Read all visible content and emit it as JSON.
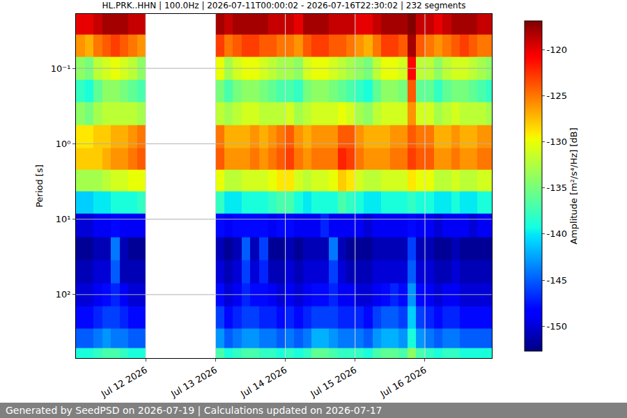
{
  "chart_data": {
    "type": "heatmap",
    "title": "HL.PRK..HHN | 100.0Hz | 2026-07-11T00:00:02 - 2026-07-16T22:30:02 | 232 segments",
    "ylabel": "Period [s]",
    "footer": "Generated by SeedPSD on 2026-07-19 | Calculations updated on 2026-07-17",
    "color": "jet",
    "log": "y",
    "grid": true,
    "xlim": [
      "2026-07-11 00:00",
      "2026-07-16 23:00"
    ],
    "xticks": [
      {
        "value": "2026-07-12",
        "label": "Jul 12 2026"
      },
      {
        "value": "2026-07-13",
        "label": "Jul 13 2026"
      },
      {
        "value": "2026-07-14",
        "label": "Jul 14 2026"
      },
      {
        "value": "2026-07-15",
        "label": "Jul 15 2026"
      },
      {
        "value": "2026-07-16",
        "label": "Jul 16 2026"
      }
    ],
    "ylim": [
      695,
      0.019
    ],
    "yticks": [
      {
        "value": 0.1,
        "label": "10⁻¹"
      },
      {
        "value": 1,
        "label": "10⁰"
      },
      {
        "value": 10,
        "label": "10¹"
      },
      {
        "value": 100,
        "label": "10²"
      }
    ],
    "colorbar": {
      "title": "Amplitude [m²/s⁴/Hz] [dB]",
      "zlim": [
        -152.7,
        -116.9
      ],
      "ticks": [
        -150,
        -145,
        -140,
        -135,
        -130,
        -125,
        -120
      ]
    },
    "x": [
      "2026-07-11 01:30",
      "2026-07-11 04:30",
      "2026-07-11 07:30",
      "2026-07-11 10:30",
      "2026-07-11 13:30",
      "2026-07-11 16:30",
      "2026-07-11 19:30",
      "2026-07-11 22:30",
      "2026-07-12 01:30",
      "2026-07-12 04:30",
      "2026-07-12 07:30",
      "2026-07-12 10:30",
      "2026-07-12 13:30",
      "2026-07-12 16:30",
      "2026-07-12 19:30",
      "2026-07-12 22:30",
      "2026-07-13 01:30",
      "2026-07-13 04:30",
      "2026-07-13 07:30",
      "2026-07-13 10:30",
      "2026-07-13 13:30",
      "2026-07-13 16:30",
      "2026-07-13 19:30",
      "2026-07-13 22:30",
      "2026-07-14 01:30",
      "2026-07-14 04:30",
      "2026-07-14 07:30",
      "2026-07-14 10:30",
      "2026-07-14 13:30",
      "2026-07-14 16:30",
      "2026-07-14 19:30",
      "2026-07-14 22:30",
      "2026-07-15 01:30",
      "2026-07-15 04:30",
      "2026-07-15 07:30",
      "2026-07-15 10:30",
      "2026-07-15 13:30",
      "2026-07-15 16:30",
      "2026-07-15 19:30",
      "2026-07-15 22:30",
      "2026-07-16 01:30",
      "2026-07-16 04:30",
      "2026-07-16 07:30",
      "2026-07-16 10:30",
      "2026-07-16 13:30",
      "2026-07-16 16:30",
      "2026-07-16 19:30",
      "2026-07-16 22:30"
    ],
    "y": [
      0.025,
      0.05,
      0.1,
      0.2,
      0.4,
      0.8,
      1.6,
      3,
      6,
      12,
      25,
      50,
      100,
      200,
      400,
      650
    ],
    "z": [
      [
        -120,
        -120,
        -119,
        -118,
        -118,
        -118,
        -119,
        -119,
        null,
        null,
        null,
        null,
        null,
        null,
        null,
        null,
        -118,
        -119,
        -118,
        -118,
        -118,
        -118,
        -119,
        -119,
        -119,
        -120,
        -118,
        -118,
        -118,
        -119,
        -119,
        -119,
        -120,
        -120,
        -119,
        -118,
        -118,
        -118,
        -117,
        -119,
        -119,
        -120,
        -119,
        -118,
        -118,
        -118,
        -119,
        -119
      ],
      [
        -126,
        -127,
        -125,
        -124,
        -123,
        -124,
        -125,
        -126,
        null,
        null,
        null,
        null,
        null,
        null,
        null,
        null,
        -123,
        -125,
        -124,
        -123,
        -123,
        -124,
        -124,
        -125,
        -125,
        -126,
        -124,
        -123,
        -123,
        -124,
        -124,
        -125,
        -126,
        -127,
        -125,
        -123,
        -123,
        -124,
        -118,
        -124,
        -125,
        -126,
        -125,
        -124,
        -123,
        -124,
        -125,
        -125
      ],
      [
        -134,
        -135,
        -132,
        -131,
        -130,
        -131,
        -132,
        -134,
        null,
        null,
        null,
        null,
        null,
        null,
        null,
        null,
        -130,
        -133,
        -131,
        -130,
        -130,
        -131,
        -132,
        -133,
        -133,
        -134,
        -131,
        -130,
        -130,
        -131,
        -132,
        -133,
        -134,
        -135,
        -132,
        -130,
        -130,
        -131,
        -121,
        -132,
        -132,
        -134,
        -132,
        -131,
        -131,
        -132,
        -133,
        -134
      ],
      [
        -138,
        -139,
        -136,
        -134,
        -134,
        -135,
        -136,
        -137,
        null,
        null,
        null,
        null,
        null,
        null,
        null,
        null,
        -135,
        -137,
        -135,
        -134,
        -134,
        -135,
        -136,
        -137,
        -137,
        -138,
        -135,
        -134,
        -134,
        -135,
        -136,
        -137,
        -138,
        -139,
        -136,
        -134,
        -134,
        -135,
        -124,
        -136,
        -136,
        -138,
        -136,
        -135,
        -135,
        -136,
        -137,
        -138
      ],
      [
        -134,
        -135,
        -133,
        -132,
        -132,
        -132,
        -132,
        -133,
        null,
        null,
        null,
        null,
        null,
        null,
        null,
        null,
        -132,
        -133,
        -132,
        -131,
        -131,
        -132,
        -132,
        -132,
        -131,
        -133,
        -132,
        -131,
        -131,
        -131,
        -130,
        -131,
        -133,
        -134,
        -132,
        -131,
        -131,
        -131,
        -126,
        -131,
        -131,
        -133,
        -132,
        -131,
        -132,
        -132,
        -132,
        -133
      ],
      [
        -129,
        -129,
        -128,
        -128,
        -127,
        -127,
        -126,
        -125,
        null,
        null,
        null,
        null,
        null,
        null,
        null,
        null,
        -125,
        -127,
        -127,
        -127,
        -126,
        -127,
        -126,
        -125,
        -124,
        -126,
        -127,
        -126,
        -126,
        -126,
        -124,
        -124,
        -126,
        -127,
        -127,
        -127,
        -126,
        -126,
        -124,
        -125,
        -125,
        -127,
        -127,
        -126,
        -127,
        -127,
        -126,
        -126
      ],
      [
        -128,
        -128,
        -128,
        -127,
        -126,
        -126,
        -125,
        -124,
        null,
        null,
        null,
        null,
        null,
        null,
        null,
        null,
        -124,
        -126,
        -126,
        -126,
        -125,
        -126,
        -125,
        -124,
        -123,
        -125,
        -126,
        -125,
        -125,
        -125,
        -122,
        -123,
        -125,
        -126,
        -126,
        -126,
        -125,
        -125,
        -123,
        -124,
        -124,
        -126,
        -126,
        -125,
        -126,
        -126,
        -125,
        -125
      ],
      [
        -133,
        -133,
        -133,
        -132,
        -131,
        -131,
        -130,
        -130,
        null,
        null,
        null,
        null,
        null,
        null,
        null,
        null,
        -130,
        -132,
        -132,
        -131,
        -131,
        -131,
        -130,
        -129,
        -129,
        -131,
        -132,
        -131,
        -131,
        -130,
        -128,
        -129,
        -131,
        -132,
        -132,
        -131,
        -131,
        -131,
        -129,
        -130,
        -130,
        -132,
        -132,
        -131,
        -132,
        -132,
        -131,
        -131
      ],
      [
        -141,
        -141,
        -140,
        -140,
        -139,
        -139,
        -139,
        -138,
        null,
        null,
        null,
        null,
        null,
        null,
        null,
        null,
        -138,
        -140,
        -140,
        -139,
        -139,
        -139,
        -138,
        -137,
        -137,
        -139,
        -140,
        -139,
        -139,
        -139,
        -137,
        -138,
        -139,
        -140,
        -140,
        -139,
        -139,
        -139,
        -138,
        -139,
        -139,
        -140,
        -140,
        -139,
        -140,
        -140,
        -139,
        -139
      ],
      [
        -150,
        -150,
        -149,
        -149,
        -148,
        -149,
        -149,
        -149,
        null,
        null,
        null,
        null,
        null,
        null,
        null,
        null,
        -148,
        -149,
        -148,
        -148,
        -148,
        -148,
        -149,
        -148,
        -148,
        -149,
        -149,
        -149,
        -147,
        -149,
        -149,
        -149,
        -149,
        -150,
        -149,
        -149,
        -149,
        -149,
        -148,
        -149,
        -149,
        -150,
        -149,
        -149,
        -149,
        -150,
        -149,
        -149
      ],
      [
        -152,
        -152,
        -151,
        -151,
        -144,
        -151,
        -152,
        -152,
        null,
        null,
        null,
        null,
        null,
        null,
        null,
        null,
        -151,
        -152,
        -151,
        -145,
        -151,
        -146,
        -152,
        -152,
        -151,
        -152,
        -151,
        -151,
        -151,
        -144,
        -151,
        -152,
        -152,
        -152,
        -151,
        -151,
        -151,
        -151,
        -146,
        -151,
        -151,
        -152,
        -152,
        -151,
        -152,
        -152,
        -152,
        -152
      ],
      [
        -151,
        -151,
        -150,
        -150,
        -145,
        -151,
        -151,
        -151,
        null,
        null,
        null,
        null,
        null,
        null,
        null,
        null,
        -150,
        -151,
        -150,
        -146,
        -150,
        -147,
        -151,
        -151,
        -150,
        -151,
        -150,
        -150,
        -150,
        -146,
        -150,
        -151,
        -151,
        -151,
        -150,
        -150,
        -150,
        -150,
        -145,
        -150,
        -150,
        -151,
        -151,
        -150,
        -151,
        -151,
        -151,
        -151
      ],
      [
        -150,
        -150,
        -149,
        -148,
        -147,
        -149,
        -150,
        -150,
        null,
        null,
        null,
        null,
        null,
        null,
        null,
        null,
        -148,
        -150,
        -149,
        -147,
        -148,
        -148,
        -149,
        -150,
        -149,
        -150,
        -149,
        -148,
        -148,
        -147,
        -149,
        -149,
        -150,
        -150,
        -149,
        -148,
        -147,
        -148,
        -143,
        -148,
        -149,
        -150,
        -149,
        -149,
        -150,
        -150,
        -150,
        -150
      ],
      [
        -148,
        -148,
        -147,
        -146,
        -146,
        -147,
        -148,
        -148,
        null,
        null,
        null,
        null,
        null,
        null,
        null,
        null,
        -146,
        -148,
        -147,
        -146,
        -146,
        -147,
        -147,
        -148,
        -147,
        -148,
        -147,
        -146,
        -146,
        -146,
        -147,
        -147,
        -147,
        -148,
        -146,
        -145,
        -145,
        -146,
        -141,
        -146,
        -147,
        -148,
        -147,
        -147,
        -148,
        -148,
        -148,
        -148
      ],
      [
        -145,
        -145,
        -144,
        -143,
        -144,
        -144,
        -145,
        -145,
        null,
        null,
        null,
        null,
        null,
        null,
        null,
        null,
        -143,
        -145,
        -144,
        -143,
        -143,
        -144,
        -144,
        -145,
        -144,
        -145,
        -144,
        -142,
        -142,
        -143,
        -144,
        -144,
        -144,
        -145,
        -143,
        -142,
        -142,
        -143,
        -139,
        -143,
        -144,
        -145,
        -144,
        -144,
        -145,
        -145,
        -145,
        -145
      ],
      [
        -139,
        -139,
        -138,
        -137,
        -137,
        -138,
        -139,
        -139,
        null,
        null,
        null,
        null,
        null,
        null,
        null,
        null,
        -137,
        -139,
        -138,
        -137,
        -137,
        -138,
        -138,
        -139,
        -138,
        -139,
        -138,
        -136,
        -136,
        -137,
        -138,
        -138,
        -138,
        -139,
        -137,
        -136,
        -136,
        -137,
        -134,
        -137,
        -138,
        -139,
        -138,
        -138,
        -139,
        -139,
        -139,
        -139
      ]
    ]
  }
}
